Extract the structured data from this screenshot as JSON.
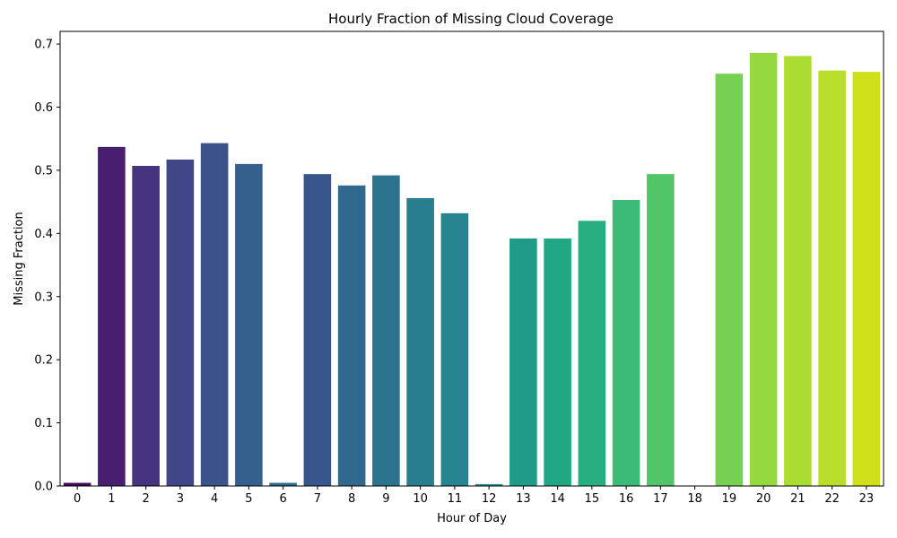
{
  "chart_data": {
    "type": "bar",
    "title": "Hourly Fraction of Missing Cloud Coverage",
    "xlabel": "Hour of Day",
    "ylabel": "Missing Fraction",
    "categories": [
      "0",
      "1",
      "2",
      "3",
      "4",
      "5",
      "6",
      "7",
      "8",
      "9",
      "10",
      "11",
      "12",
      "13",
      "14",
      "15",
      "16",
      "17",
      "18",
      "19",
      "20",
      "21",
      "22",
      "23"
    ],
    "values": [
      0.005,
      0.537,
      0.507,
      0.517,
      0.543,
      0.51,
      0.005,
      0.494,
      0.476,
      0.492,
      0.456,
      0.432,
      0.003,
      0.392,
      0.392,
      0.42,
      0.453,
      0.494,
      0.0,
      0.653,
      0.686,
      0.681,
      0.658,
      0.656
    ],
    "colors": [
      "#46085c",
      "#481f70",
      "#463480",
      "#404688",
      "#3b528b",
      "#35608d",
      "#2f6c8e",
      "#39568c",
      "#31688e",
      "#2c738e",
      "#287d8e",
      "#25848e",
      "#21918c",
      "#1e9c89",
      "#22a785",
      "#28ae80",
      "#3bbb75",
      "#52c569",
      "#60ca60",
      "#75d054",
      "#95d840",
      "#aadc32",
      "#b8de29",
      "#d0e11c"
    ],
    "ylim": [
      0,
      0.72
    ],
    "yticks": [
      0.0,
      0.1,
      0.2,
      0.3,
      0.4,
      0.5,
      0.6,
      0.7
    ],
    "ytick_labels": [
      "0.0",
      "0.1",
      "0.2",
      "0.3",
      "0.4",
      "0.5",
      "0.6",
      "0.7"
    ],
    "grid": false,
    "legend": "none"
  }
}
